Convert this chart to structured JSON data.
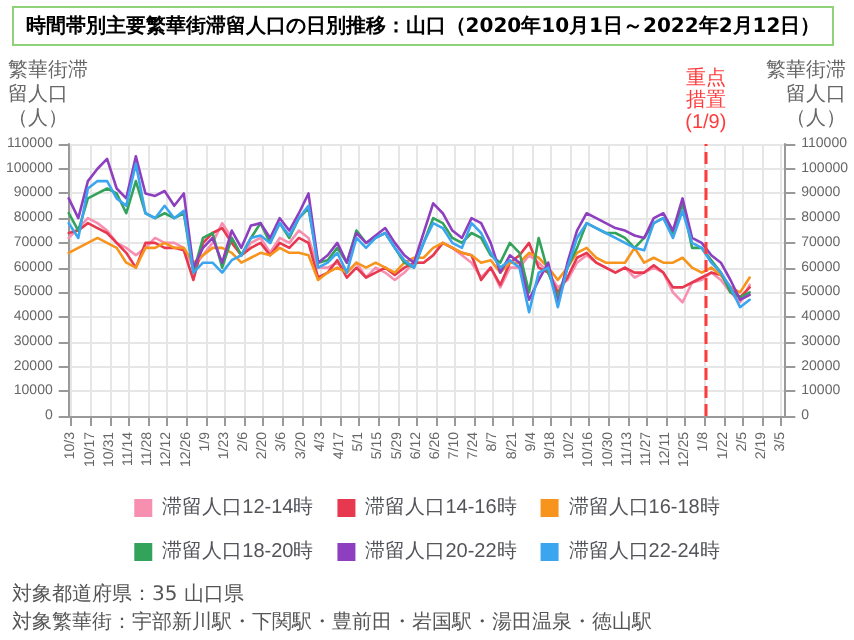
{
  "chart_data": {
    "type": "line",
    "title": "時間帯別主要繁華街滞留人口の日別推移：山口（2020年10月1日～2022年2月12日）",
    "ylabel": "繁華街滞留人口（人）",
    "y2label": "繁華街滞留人口（人）",
    "annotations": [
      "対象都道府県：35 山口県",
      "対象繁華街：宇部新川駅・下関駅・豊前田・岩国駅・湯田温泉・徳山駅"
    ],
    "x": [
      "2020-10-01",
      "2020-10-08",
      "2020-10-15",
      "2020-10-22",
      "2020-10-29",
      "2020-11-05",
      "2020-11-12",
      "2020-11-19",
      "2020-11-26",
      "2020-12-03",
      "2020-12-10",
      "2020-12-17",
      "2020-12-24",
      "2020-12-31",
      "2021-01-07",
      "2021-01-14",
      "2021-01-21",
      "2021-01-28",
      "2021-02-04",
      "2021-02-11",
      "2021-02-18",
      "2021-02-25",
      "2021-03-04",
      "2021-03-11",
      "2021-03-18",
      "2021-03-25",
      "2021-04-01",
      "2021-04-08",
      "2021-04-15",
      "2021-04-22",
      "2021-04-29",
      "2021-05-06",
      "2021-05-13",
      "2021-05-20",
      "2021-05-27",
      "2021-06-03",
      "2021-06-10",
      "2021-06-17",
      "2021-06-24",
      "2021-07-01",
      "2021-07-08",
      "2021-07-15",
      "2021-07-22",
      "2021-07-29",
      "2021-08-05",
      "2021-08-12",
      "2021-08-19",
      "2021-08-26",
      "2021-09-02",
      "2021-09-09",
      "2021-09-16",
      "2021-09-23",
      "2021-09-30",
      "2021-10-07",
      "2021-10-14",
      "2021-10-21",
      "2021-10-28",
      "2021-11-04",
      "2021-11-11",
      "2021-11-18",
      "2021-11-25",
      "2021-12-02",
      "2021-12-09",
      "2021-12-16",
      "2021-12-23",
      "2021-12-30",
      "2022-01-06",
      "2022-01-13",
      "2022-01-20",
      "2022-01-27",
      "2022-02-03",
      "2022-02-10"
    ],
    "series": [
      {
        "name": "滞留人口12-14時",
        "color": "#f78fb0",
        "values": [
          72000,
          76000,
          80000,
          78000,
          75000,
          70000,
          68000,
          65000,
          68000,
          72000,
          70000,
          70000,
          68000,
          60000,
          65000,
          70000,
          78000,
          72000,
          65000,
          70000,
          72000,
          66000,
          72000,
          70000,
          75000,
          72000,
          60000,
          60000,
          62000,
          58000,
          62000,
          56000,
          60000,
          58000,
          55000,
          58000,
          62000,
          62000,
          65000,
          70000,
          68000,
          65000,
          62000,
          56000,
          60000,
          52000,
          60000,
          60000,
          65000,
          62000,
          58000,
          52000,
          55000,
          62000,
          65000,
          62000,
          60000,
          58000,
          60000,
          56000,
          58000,
          60000,
          58000,
          50000,
          46000,
          54000,
          55000,
          58000,
          55000,
          50000,
          46000,
          53000
        ]
      },
      {
        "name": "滞留人口14-16時",
        "color": "#e8384f",
        "values": [
          74000,
          75000,
          78000,
          76000,
          74000,
          70000,
          66000,
          60000,
          70000,
          70000,
          68000,
          68000,
          67000,
          55000,
          70000,
          74000,
          76000,
          70000,
          65000,
          68000,
          70000,
          65000,
          70000,
          68000,
          72000,
          70000,
          56000,
          58000,
          63000,
          56000,
          60000,
          56000,
          58000,
          60000,
          57000,
          60000,
          62000,
          62000,
          65000,
          70000,
          68000,
          66000,
          65000,
          55000,
          60000,
          53000,
          62000,
          65000,
          70000,
          60000,
          58000,
          50000,
          56000,
          64000,
          66000,
          62000,
          60000,
          58000,
          60000,
          58000,
          58000,
          61000,
          58000,
          52000,
          52000,
          54000,
          56000,
          58000,
          57000,
          52000,
          48000,
          52000
        ]
      },
      {
        "name": "滞留人口16-18時",
        "color": "#f7941d",
        "values": [
          66000,
          68000,
          70000,
          72000,
          70000,
          68000,
          62000,
          60000,
          68000,
          68000,
          70000,
          68000,
          68000,
          62000,
          65000,
          68000,
          68000,
          66000,
          62000,
          64000,
          66000,
          65000,
          68000,
          66000,
          66000,
          65000,
          55000,
          58000,
          60000,
          58000,
          62000,
          60000,
          62000,
          60000,
          58000,
          62000,
          64000,
          64000,
          68000,
          70000,
          68000,
          66000,
          65000,
          62000,
          63000,
          58000,
          62000,
          62000,
          66000,
          64000,
          60000,
          55000,
          60000,
          66000,
          68000,
          64000,
          62000,
          62000,
          62000,
          68000,
          62000,
          64000,
          62000,
          62000,
          64000,
          60000,
          58000,
          60000,
          57000,
          52000,
          50000,
          56000
        ]
      },
      {
        "name": "滞留人口18-20時",
        "color": "#33a35c",
        "values": [
          82000,
          75000,
          88000,
          90000,
          92000,
          90000,
          82000,
          95000,
          82000,
          80000,
          82000,
          80000,
          82000,
          58000,
          72000,
          74000,
          60000,
          72000,
          65000,
          72000,
          78000,
          70000,
          78000,
          72000,
          80000,
          84000,
          62000,
          63000,
          68000,
          62000,
          75000,
          70000,
          72000,
          74000,
          68000,
          62000,
          60000,
          70000,
          80000,
          78000,
          72000,
          70000,
          74000,
          72000,
          65000,
          62000,
          70000,
          66000,
          50000,
          72000,
          58000,
          48000,
          60000,
          68000,
          78000,
          76000,
          74000,
          74000,
          72000,
          68000,
          72000,
          78000,
          80000,
          74000,
          86000,
          68000,
          68000,
          63000,
          58000,
          50000,
          48000,
          50000
        ]
      },
      {
        "name": "滞留人口20-22時",
        "color": "#8e3fc0",
        "values": [
          88000,
          80000,
          95000,
          100000,
          104000,
          92000,
          88000,
          105000,
          90000,
          89000,
          91000,
          85000,
          90000,
          60000,
          68000,
          72000,
          62000,
          75000,
          68000,
          77000,
          78000,
          72000,
          80000,
          75000,
          82000,
          90000,
          62000,
          65000,
          70000,
          62000,
          74000,
          70000,
          73000,
          76000,
          70000,
          65000,
          62000,
          74000,
          86000,
          82000,
          75000,
          72000,
          80000,
          78000,
          70000,
          58000,
          65000,
          62000,
          47000,
          55000,
          62000,
          45000,
          62000,
          75000,
          82000,
          80000,
          78000,
          76000,
          75000,
          73000,
          72000,
          80000,
          82000,
          75000,
          88000,
          72000,
          70000,
          65000,
          62000,
          55000,
          47000,
          49000
        ]
      },
      {
        "name": "滞留人口22-24時",
        "color": "#3ca5ef",
        "values": [
          78000,
          72000,
          92000,
          95000,
          95000,
          88000,
          85000,
          102000,
          82000,
          80000,
          85000,
          80000,
          83000,
          58000,
          62000,
          62000,
          58000,
          63000,
          65000,
          72000,
          73000,
          70000,
          78000,
          73000,
          80000,
          85000,
          60000,
          62000,
          66000,
          58000,
          72000,
          68000,
          72000,
          74000,
          68000,
          63000,
          60000,
          70000,
          78000,
          76000,
          70000,
          68000,
          78000,
          74000,
          66000,
          60000,
          63000,
          60000,
          42000,
          58000,
          60000,
          44000,
          60000,
          72000,
          78000,
          76000,
          74000,
          72000,
          70000,
          68000,
          67000,
          78000,
          80000,
          72000,
          83000,
          70000,
          68000,
          62000,
          58000,
          52000,
          44000,
          47000
        ]
      }
    ],
    "xlim": [
      "2020-10-01",
      "2022-03-08"
    ],
    "xticks": [
      {
        "value": "2020-10-03",
        "label": "10/3"
      },
      {
        "value": "2020-10-17",
        "label": "10/17"
      },
      {
        "value": "2020-10-31",
        "label": "10/31"
      },
      {
        "value": "2020-11-14",
        "label": "11/14"
      },
      {
        "value": "2020-11-28",
        "label": "11/28"
      },
      {
        "value": "2020-12-12",
        "label": "12/12"
      },
      {
        "value": "2020-12-26",
        "label": "12/26"
      },
      {
        "value": "2021-01-09",
        "label": "1/9"
      },
      {
        "value": "2021-01-23",
        "label": "1/23"
      },
      {
        "value": "2021-02-06",
        "label": "2/6"
      },
      {
        "value": "2021-02-20",
        "label": "2/20"
      },
      {
        "value": "2021-03-06",
        "label": "3/6"
      },
      {
        "value": "2021-03-20",
        "label": "3/20"
      },
      {
        "value": "2021-04-03",
        "label": "4/3"
      },
      {
        "value": "2021-04-17",
        "label": "4/17"
      },
      {
        "value": "2021-05-01",
        "label": "5/1"
      },
      {
        "value": "2021-05-15",
        "label": "5/15"
      },
      {
        "value": "2021-05-29",
        "label": "5/29"
      },
      {
        "value": "2021-06-12",
        "label": "6/12"
      },
      {
        "value": "2021-06-26",
        "label": "6/26"
      },
      {
        "value": "2021-07-10",
        "label": "7/10"
      },
      {
        "value": "2021-07-24",
        "label": "7/24"
      },
      {
        "value": "2021-08-07",
        "label": "8/7"
      },
      {
        "value": "2021-08-21",
        "label": "8/21"
      },
      {
        "value": "2021-09-04",
        "label": "9/4"
      },
      {
        "value": "2021-09-18",
        "label": "9/18"
      },
      {
        "value": "2021-10-02",
        "label": "10/2"
      },
      {
        "value": "2021-10-16",
        "label": "10/16"
      },
      {
        "value": "2021-10-30",
        "label": "10/30"
      },
      {
        "value": "2021-11-13",
        "label": "11/13"
      },
      {
        "value": "2021-11-27",
        "label": "11/27"
      },
      {
        "value": "2021-12-11",
        "label": "12/11"
      },
      {
        "value": "2021-12-25",
        "label": "12/25"
      },
      {
        "value": "2022-01-08",
        "label": "1/8"
      },
      {
        "value": "2022-01-22",
        "label": "1/22"
      },
      {
        "value": "2022-02-05",
        "label": "2/5"
      },
      {
        "value": "2022-02-19",
        "label": "2/19"
      },
      {
        "value": "2022-03-05",
        "label": "3/5"
      }
    ],
    "ylim": [
      0,
      110000
    ],
    "yticks": [
      0,
      10000,
      20000,
      30000,
      40000,
      50000,
      60000,
      70000,
      80000,
      90000,
      100000,
      110000
    ],
    "y2lim": [
      0,
      110000
    ],
    "y2ticks": [
      0,
      10000,
      20000,
      30000,
      40000,
      50000,
      60000,
      70000,
      80000,
      90000,
      100000,
      110000
    ],
    "ref_lines": [
      {
        "axis": "x",
        "value": "2022-01-09",
        "label": "重点措置(1/9)",
        "color": "#ff3b3b",
        "line_style": "dashed"
      }
    ],
    "grid": true,
    "legend": "bottom",
    "marker": "none",
    "line_style": "solid"
  }
}
